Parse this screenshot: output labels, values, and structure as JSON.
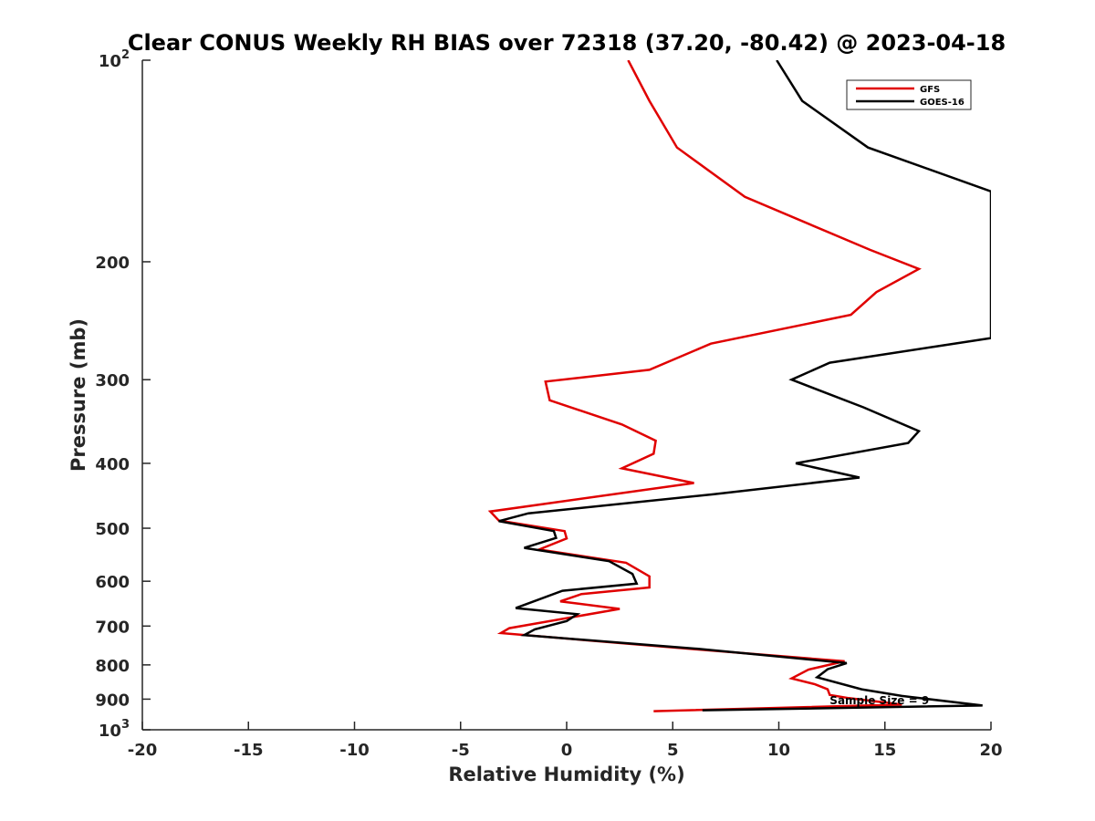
{
  "chart_data": {
    "type": "line",
    "title": "Clear CONUS Weekly RH BIAS over 72318 (37.20, -80.42) @ 2023-04-18",
    "xlabel": "Relative Humidity (%)",
    "ylabel": "Pressure (mb)",
    "xlim": [
      -20,
      20
    ],
    "ylim": [
      100,
      1000
    ],
    "y_scale": "log",
    "y_reversed": true,
    "grid": false,
    "legend_position": "top-right",
    "x_ticks": [
      -20,
      -15,
      -10,
      -5,
      0,
      5,
      10,
      15,
      20
    ],
    "x_tick_labels": [
      "-20",
      "-15",
      "-10",
      "-5",
      "0",
      "5",
      "10",
      "15",
      "20"
    ],
    "y_ticks": [
      200,
      300,
      400,
      500,
      600,
      700,
      800,
      900
    ],
    "y_tick_labels": [
      "200",
      "300",
      "400",
      "500",
      "600",
      "700",
      "800",
      "900"
    ],
    "y_end_labels": {
      "top": {
        "base": "10",
        "exp": "2"
      },
      "bottom": {
        "base": "10",
        "exp": "3"
      }
    },
    "annotation": {
      "text": "Sample Size = 9",
      "x": 12.4,
      "pressure": 904
    },
    "series": [
      {
        "name": "GFS",
        "color": "#e00000",
        "points": [
          [
            2.9,
            100
          ],
          [
            3.9,
            115
          ],
          [
            5.2,
            135
          ],
          [
            8.4,
            160
          ],
          [
            14.3,
            192
          ],
          [
            16.6,
            205
          ],
          [
            14.6,
            222
          ],
          [
            13.4,
            240
          ],
          [
            6.8,
            265
          ],
          [
            3.9,
            290
          ],
          [
            -1.0,
            302
          ],
          [
            -0.8,
            322
          ],
          [
            2.6,
            350
          ],
          [
            4.2,
            370
          ],
          [
            4.1,
            387
          ],
          [
            2.6,
            407
          ],
          [
            6.0,
            428
          ],
          [
            -3.6,
            472
          ],
          [
            -3.2,
            487
          ],
          [
            -0.1,
            505
          ],
          [
            0.0,
            518
          ],
          [
            -1.3,
            538
          ],
          [
            2.8,
            563
          ],
          [
            3.9,
            590
          ],
          [
            3.9,
            613
          ],
          [
            0.7,
            627
          ],
          [
            -0.3,
            643
          ],
          [
            2.5,
            660
          ],
          [
            -2.7,
            705
          ],
          [
            -3.1,
            717
          ],
          [
            5.8,
            757
          ],
          [
            13.1,
            790
          ],
          [
            11.4,
            813
          ],
          [
            10.6,
            838
          ],
          [
            11.7,
            855
          ],
          [
            12.3,
            870
          ],
          [
            12.4,
            887
          ],
          [
            13.3,
            897
          ],
          [
            15.8,
            917
          ],
          [
            4.1,
            938
          ]
        ]
      },
      {
        "name": "GOES-16",
        "color": "#000000",
        "points": [
          [
            9.9,
            100
          ],
          [
            11.1,
            115
          ],
          [
            14.2,
            135
          ],
          [
            20.0,
            157
          ],
          [
            20.0,
            260
          ],
          [
            12.4,
            283
          ],
          [
            10.6,
            300
          ],
          [
            14.0,
            330
          ],
          [
            16.6,
            358
          ],
          [
            16.1,
            373
          ],
          [
            10.8,
            400
          ],
          [
            13.8,
            420
          ],
          [
            6.9,
            445
          ],
          [
            -1.8,
            475
          ],
          [
            -3.2,
            488
          ],
          [
            -0.6,
            505
          ],
          [
            -0.5,
            517
          ],
          [
            -2.0,
            535
          ],
          [
            2.0,
            560
          ],
          [
            3.1,
            585
          ],
          [
            3.3,
            605
          ],
          [
            -0.2,
            620
          ],
          [
            -2.4,
            658
          ],
          [
            0.5,
            672
          ],
          [
            0.0,
            688
          ],
          [
            -1.5,
            708
          ],
          [
            -2.0,
            722
          ],
          [
            6.2,
            757
          ],
          [
            13.2,
            795
          ],
          [
            12.3,
            812
          ],
          [
            11.8,
            835
          ],
          [
            13.9,
            870
          ],
          [
            15.8,
            890
          ],
          [
            19.6,
            920
          ],
          [
            6.4,
            935
          ]
        ]
      }
    ]
  }
}
